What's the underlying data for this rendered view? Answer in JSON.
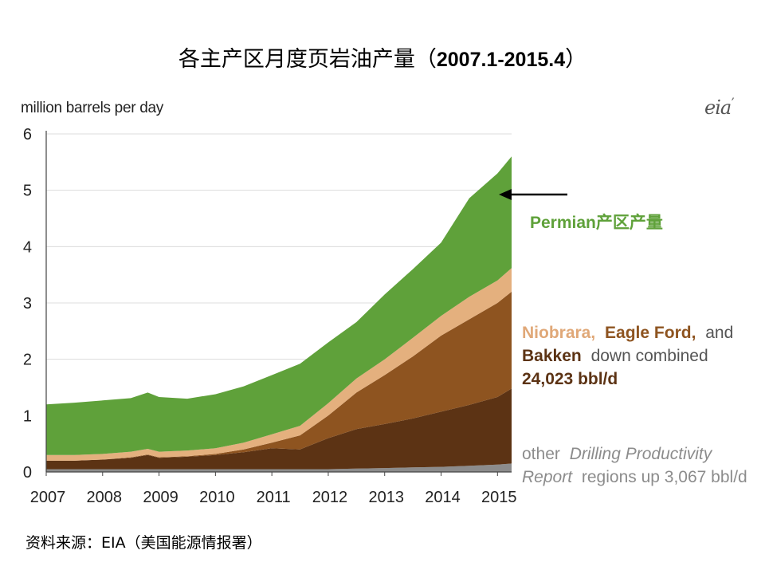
{
  "title": {
    "main": "各主产区月度页岩油产量（",
    "range": "2007.1-2015.4",
    "close": "）"
  },
  "unit_label": "million barrels  per day",
  "logo_text": "eia",
  "source_note": "资料来源：EIA（美国能源情报署）",
  "annotations": {
    "permian": "Permian产区产量",
    "niobrara": "Niobrara,",
    "eagle_ford": "Eagle Ford,",
    "and": "and",
    "bakken": "Bakken",
    "down_combined": "down combined",
    "bakken_value": "24,023  bbl/d",
    "other_1": "other",
    "other_2": "Drilling Productivity",
    "other_3": "Report",
    "other_4": "regions up 3,067 bbl/d"
  },
  "colors": {
    "other": "#8c8c8c",
    "bakken": "#5c3314",
    "eagle_ford": "#8e5420",
    "niobrara": "#e4b07e",
    "permian": "#5fa13a",
    "label_niobrara": "#e0a878",
    "label_eagle": "#8e5420",
    "label_bakken": "#5c3314",
    "label_other": "#8c8c8c",
    "label_permian": "#5fa13a"
  },
  "chart_data": {
    "type": "area",
    "stacked": true,
    "title": "各主产区月度页岩油产量（2007.1-2015.4）",
    "ylabel": "million barrels  per day",
    "ylim": [
      0,
      6
    ],
    "xlim": [
      2007,
      2015.25
    ],
    "yticks": [
      "0",
      "1",
      "2",
      "3",
      "4",
      "5",
      "6"
    ],
    "xticks": [
      "2007",
      "2008",
      "2009",
      "2010",
      "2011",
      "2012",
      "2013",
      "2014",
      "2015"
    ],
    "x": [
      2007.0,
      2007.5,
      2008.0,
      2008.5,
      2008.8,
      2009.0,
      2009.5,
      2010.0,
      2010.5,
      2011.0,
      2011.5,
      2012.0,
      2012.5,
      2013.0,
      2013.5,
      2014.0,
      2014.5,
      2015.0,
      2015.25
    ],
    "series": [
      {
        "name": "other Drilling Productivity Report regions",
        "values": [
          0.05,
          0.05,
          0.05,
          0.05,
          0.05,
          0.05,
          0.05,
          0.05,
          0.05,
          0.05,
          0.05,
          0.05,
          0.06,
          0.07,
          0.08,
          0.09,
          0.11,
          0.13,
          0.15
        ]
      },
      {
        "name": "Bakken",
        "values": [
          0.15,
          0.15,
          0.17,
          0.2,
          0.25,
          0.2,
          0.22,
          0.25,
          0.3,
          0.37,
          0.35,
          0.55,
          0.7,
          0.78,
          0.87,
          0.98,
          1.08,
          1.2,
          1.33
        ]
      },
      {
        "name": "Eagle Ford",
        "values": [
          0.0,
          0.0,
          0.0,
          0.01,
          0.01,
          0.01,
          0.01,
          0.02,
          0.05,
          0.1,
          0.25,
          0.4,
          0.65,
          0.87,
          1.1,
          1.35,
          1.52,
          1.67,
          1.72
        ]
      },
      {
        "name": "Niobrara",
        "values": [
          0.1,
          0.1,
          0.1,
          0.1,
          0.1,
          0.1,
          0.1,
          0.1,
          0.12,
          0.15,
          0.17,
          0.22,
          0.25,
          0.28,
          0.33,
          0.35,
          0.4,
          0.4,
          0.42
        ]
      },
      {
        "name": "Permian",
        "values": [
          0.9,
          0.93,
          0.95,
          0.95,
          1.0,
          0.97,
          0.92,
          0.96,
          1.0,
          1.05,
          1.1,
          1.08,
          1.0,
          1.15,
          1.22,
          1.3,
          1.75,
          1.9,
          1.98
        ]
      }
    ]
  }
}
